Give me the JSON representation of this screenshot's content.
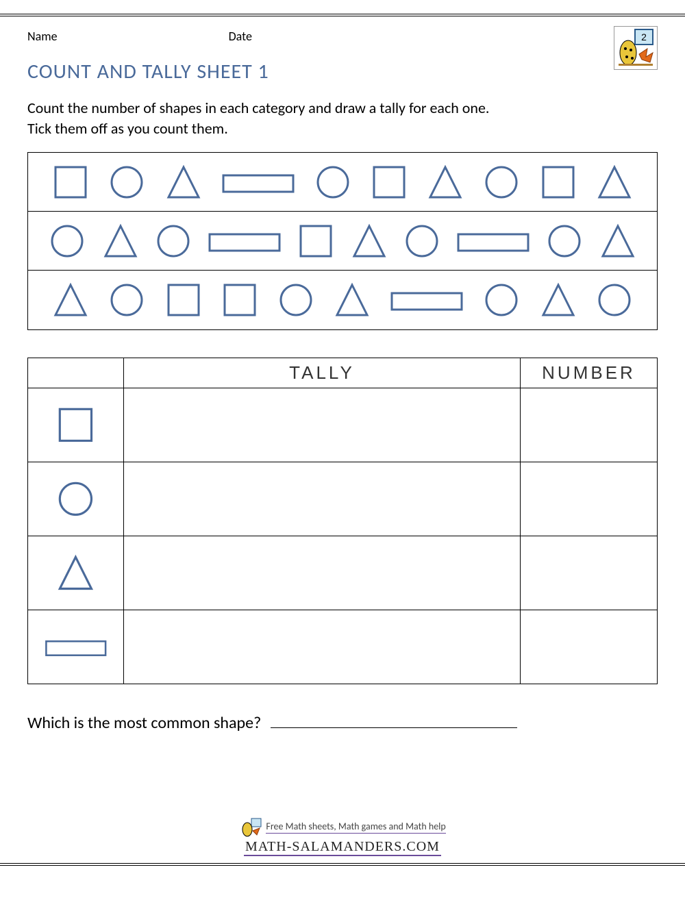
{
  "header": {
    "name_label": "Name",
    "date_label": "Date"
  },
  "title": "COUNT AND TALLY SHEET 1",
  "instructions_line1": "Count the number of shapes in each category and draw a tally for each one.",
  "instructions_line2": "Tick them off as you count them.",
  "style": {
    "shape_stroke": "#4a6a9a",
    "shape_stroke_width": 3,
    "title_color": "#4a6a9a",
    "border_color": "#000000",
    "background": "#ffffff"
  },
  "shape_rows": [
    [
      "square",
      "circle",
      "triangle",
      "rectangle",
      "circle",
      "square",
      "triangle",
      "circle",
      "square",
      "triangle"
    ],
    [
      "circle",
      "triangle",
      "circle",
      "rectangle",
      "square",
      "triangle",
      "circle",
      "rectangle",
      "circle",
      "triangle"
    ],
    [
      "triangle",
      "circle",
      "square",
      "square",
      "circle",
      "triangle",
      "rectangle",
      "circle",
      "triangle",
      "circle"
    ]
  ],
  "tally_table": {
    "headers": {
      "shape": "",
      "tally": "TALLY",
      "number": "NUMBER"
    },
    "rows": [
      "square",
      "circle",
      "triangle",
      "rectangle"
    ]
  },
  "question": "Which is the most common shape?",
  "footer": {
    "tagline": "Free Math sheets, Math games and Math help",
    "site": "MATH-SALAMANDERS.COM"
  },
  "logo_badge_number": "2"
}
